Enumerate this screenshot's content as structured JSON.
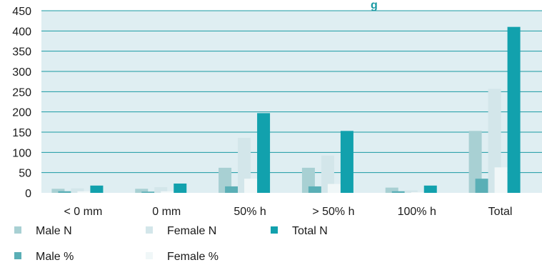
{
  "chart_data": {
    "type": "bar",
    "title_fragment": "g",
    "categories": [
      "< 0 mm",
      "0 mm",
      "50% h",
      "> 50% h",
      "100% h",
      "Total"
    ],
    "series": [
      {
        "name": "Male N",
        "color": "#a8d0d3",
        "values": [
          10,
          10,
          62,
          62,
          13,
          153
        ]
      },
      {
        "name": "Male %",
        "color": "#5aafb6",
        "values": [
          4,
          3,
          16,
          16,
          4,
          35
        ]
      },
      {
        "name": "Female N",
        "color": "#d3e6ea",
        "values": [
          11,
          14,
          136,
          92,
          6,
          257
        ]
      },
      {
        "name": "Female %",
        "color": "#f0f7f8",
        "values": [
          4,
          4,
          35,
          22,
          2,
          63
        ]
      },
      {
        "name": "Total N",
        "color": "#12a1ad",
        "values": [
          18,
          23,
          197,
          153,
          18,
          410
        ]
      }
    ],
    "ylim": [
      0,
      450
    ],
    "yticks": [
      0,
      50,
      100,
      150,
      200,
      250,
      300,
      350,
      400,
      450
    ],
    "grid": true,
    "legend_position": "bottom",
    "legend_order": [
      "Male N",
      "Female N",
      "Total N",
      "Male %",
      "Female %"
    ],
    "plot_background": "#dfeef2",
    "grid_color": "#1a9aa3"
  }
}
